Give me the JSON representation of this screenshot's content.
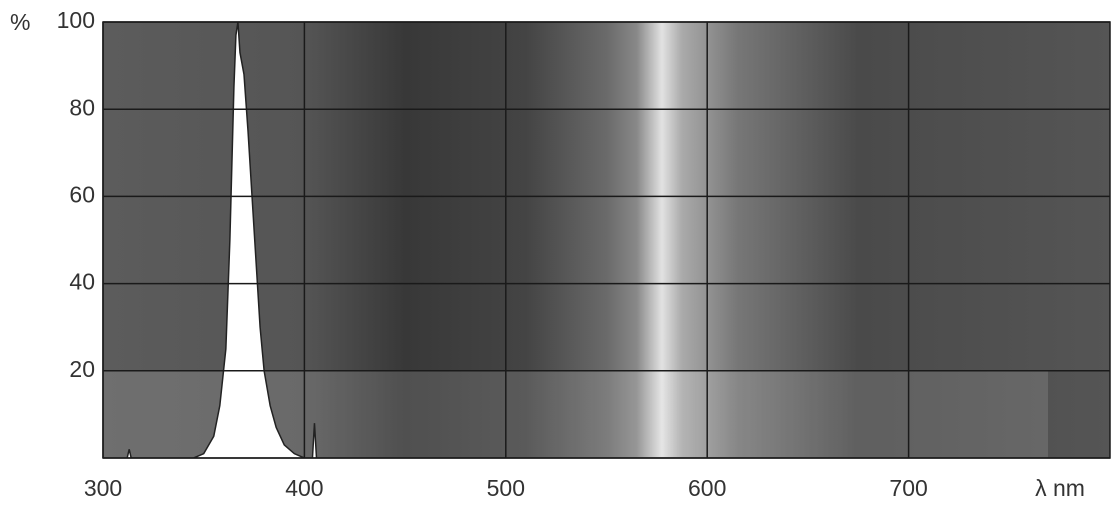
{
  "chart_data": {
    "type": "area",
    "y_unit": "%",
    "x_label": "λ nm",
    "x": [
      300,
      312,
      313,
      314,
      345,
      350,
      355,
      358,
      361,
      363,
      365,
      366,
      367,
      368,
      370,
      372,
      374,
      376,
      378,
      380,
      383,
      386,
      390,
      395,
      400,
      404,
      405,
      406,
      410,
      500,
      800
    ],
    "values": [
      0,
      0,
      2,
      0,
      0,
      1,
      5,
      12,
      25,
      50,
      85,
      97,
      100,
      93,
      88,
      75,
      60,
      45,
      30,
      20,
      12,
      7,
      3,
      1,
      0,
      0,
      8,
      0,
      0,
      0,
      0
    ],
    "color": "#ffffff",
    "xlim": [
      300,
      800
    ],
    "xticks": [
      300,
      400,
      500,
      600,
      700
    ],
    "ylim": [
      0,
      100
    ],
    "yticks": [
      20,
      40,
      60,
      80,
      100
    ],
    "grid": true
  }
}
